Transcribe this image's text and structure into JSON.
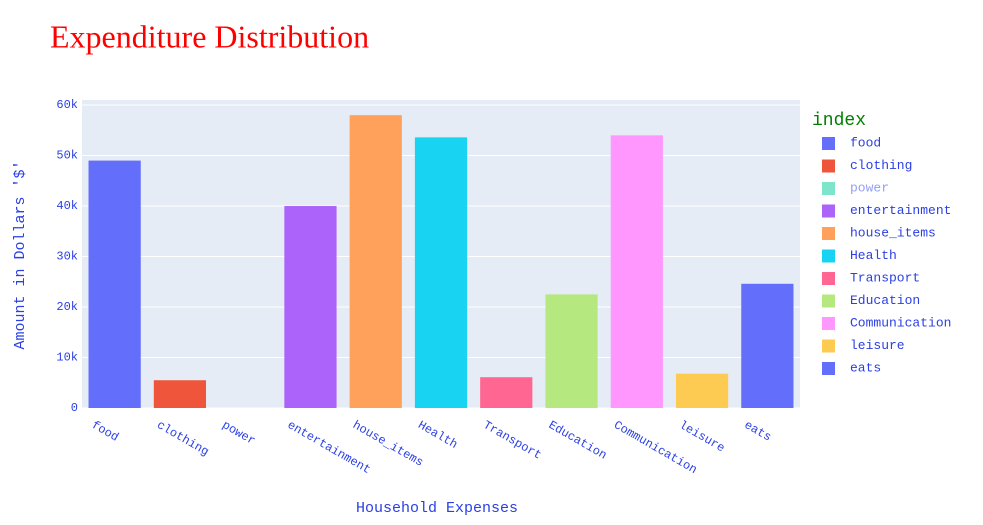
{
  "chart_data": {
    "type": "bar",
    "title": "Expenditure Distribution",
    "x_label": "Household Expenses",
    "y_label": "Amount in Dollars '$'",
    "legend_title": "index",
    "categories": [
      "food",
      "clothing",
      "power",
      "entertainment",
      "house_items",
      "Health",
      "Transport",
      "Education",
      "Communication",
      "leisure",
      "eats"
    ],
    "values": [
      49000,
      5500,
      0,
      40000,
      58000,
      53600,
      6100,
      22500,
      54000,
      6800,
      24600
    ],
    "colors": [
      "#636efa",
      "#ef553b",
      "#00cc96",
      "#ab63fa",
      "#ffa15a",
      "#19d3f3",
      "#ff6692",
      "#b6e880",
      "#ff97ff",
      "#fecb52",
      "#636efa"
    ],
    "ylim": [
      0,
      61000
    ],
    "yticks": [
      0,
      {
        "value": 10000,
        "label": "10k"
      },
      {
        "value": 20000,
        "label": "20k"
      },
      {
        "value": 30000,
        "label": "30k"
      },
      {
        "value": 40000,
        "label": "40k"
      },
      {
        "value": 50000,
        "label": "50k"
      },
      {
        "value": 60000,
        "label": "60k"
      }
    ],
    "grid": true,
    "legend": "right"
  }
}
